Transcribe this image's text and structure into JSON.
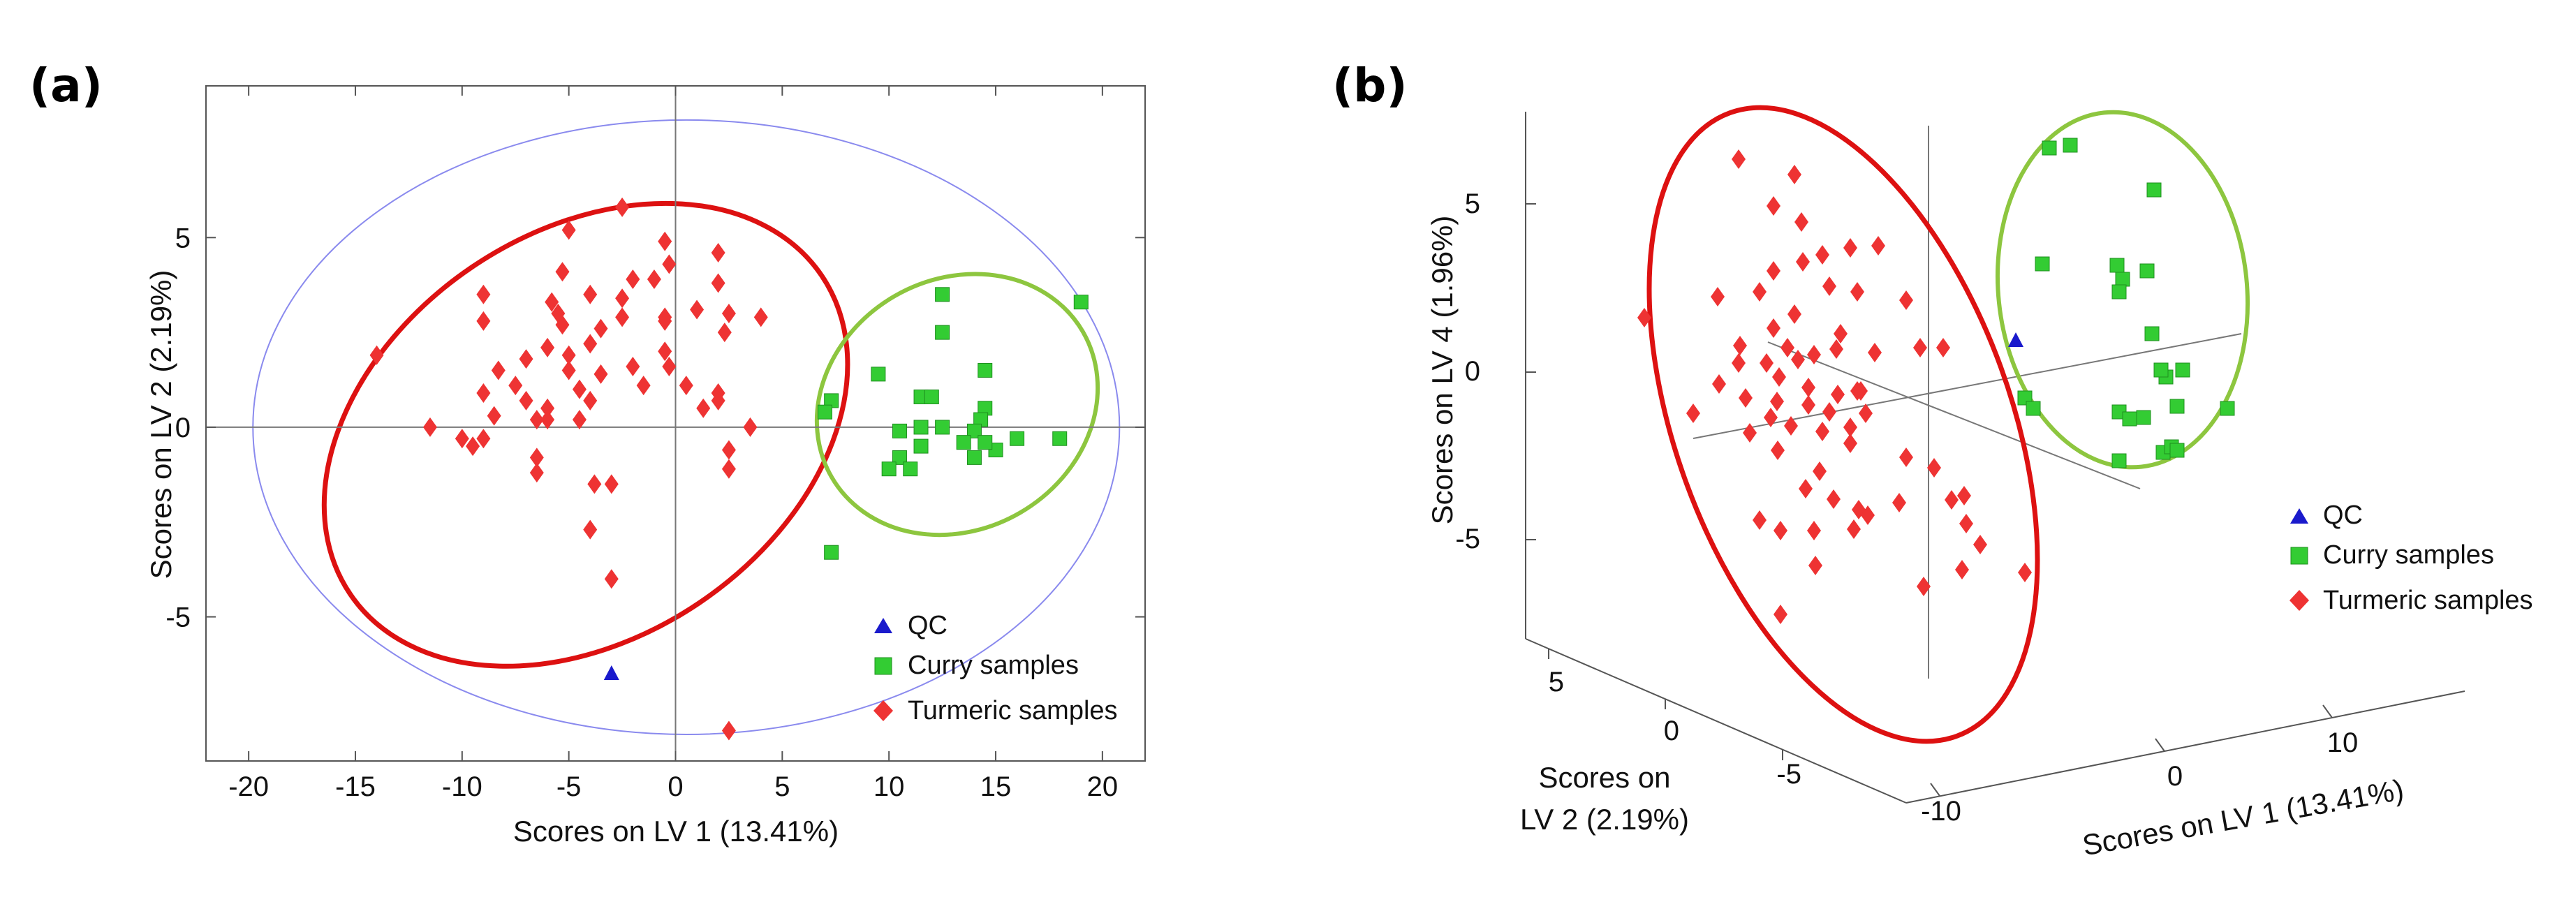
{
  "chart_data": [
    {
      "panel_label": "(a)",
      "type": "scatter",
      "xlabel": "Scores on LV 1 (13.41%)",
      "ylabel": "Scores on LV 2 (2.19%)",
      "xlim": [
        -22,
        22
      ],
      "ylim": [
        -8.8,
        9
      ],
      "xticks": [
        -20,
        -15,
        -10,
        -5,
        0,
        5,
        10,
        15,
        20
      ],
      "yticks": [
        -5,
        0,
        5
      ],
      "xtick_labels": [
        "-20",
        "-15",
        "-10",
        "-5",
        "0",
        "5",
        "10",
        "15",
        "20"
      ],
      "ytick_labels": [
        "-5",
        "0",
        "5"
      ],
      "legend": {
        "position": "bottom-right",
        "entries": [
          "QC",
          "Curry samples",
          "Turmeric samples"
        ]
      },
      "colors": {
        "QC": "#1a1acc",
        "Curry": "#33cc33",
        "Turmeric": "#ee3333",
        "curry_ellipse": "#8dc63f",
        "turmeric_ellipse": "#dd1111",
        "confidence": "#8a8aee"
      },
      "series": [
        {
          "name": "QC",
          "marker": "triangle",
          "points": [
            [
              -3,
              -6.5
            ]
          ]
        },
        {
          "name": "Curry samples",
          "marker": "square",
          "points": [
            [
              19,
              3.3
            ],
            [
              12.5,
              3.5
            ],
            [
              12.5,
              2.5
            ],
            [
              7.3,
              0.7
            ],
            [
              7,
              0.4
            ],
            [
              9.5,
              1.4
            ],
            [
              11.5,
              0.8
            ],
            [
              12,
              0.8
            ],
            [
              14.5,
              1.5
            ],
            [
              14.5,
              0.5
            ],
            [
              14.3,
              0.2
            ],
            [
              14,
              -0.1
            ],
            [
              12.5,
              0
            ],
            [
              11.5,
              0
            ],
            [
              10.5,
              -0.1
            ],
            [
              11.5,
              -0.5
            ],
            [
              10.5,
              -0.8
            ],
            [
              10,
              -1.1
            ],
            [
              11,
              -1.1
            ],
            [
              14,
              -0.8
            ],
            [
              15,
              -0.6
            ],
            [
              13.5,
              -0.4
            ],
            [
              16,
              -0.3
            ],
            [
              18,
              -0.3
            ],
            [
              14.5,
              -0.4
            ],
            [
              7.3,
              -3.3
            ]
          ]
        },
        {
          "name": "Turmeric samples",
          "marker": "diamond",
          "points": [
            [
              -14,
              1.9
            ],
            [
              -11.5,
              0
            ],
            [
              -10,
              -0.3
            ],
            [
              -9.5,
              -0.5
            ],
            [
              -9,
              -0.3
            ],
            [
              -9,
              3.5
            ],
            [
              -9,
              2.8
            ],
            [
              -9,
              0.9
            ],
            [
              -8.5,
              0.3
            ],
            [
              -8.3,
              1.5
            ],
            [
              -7.5,
              1.1
            ],
            [
              -7,
              1.8
            ],
            [
              -7,
              0.7
            ],
            [
              -6.5,
              0.2
            ],
            [
              -6,
              0.5
            ],
            [
              -6,
              0.2
            ],
            [
              -6.5,
              -0.8
            ],
            [
              -6.5,
              -1.2
            ],
            [
              -6,
              2.1
            ],
            [
              -5.8,
              3.3
            ],
            [
              -5.5,
              3
            ],
            [
              -5.3,
              2.7
            ],
            [
              -5.3,
              4.1
            ],
            [
              -5,
              5.2
            ],
            [
              -5,
              1.9
            ],
            [
              -5,
              1.5
            ],
            [
              -4.5,
              1
            ],
            [
              -4.5,
              0.2
            ],
            [
              -4,
              3.5
            ],
            [
              -4,
              2.2
            ],
            [
              -4,
              0.7
            ],
            [
              -3.8,
              -1.5
            ],
            [
              -4,
              -2.7
            ],
            [
              -3.5,
              1.4
            ],
            [
              -3.5,
              2.6
            ],
            [
              -3,
              -1.5
            ],
            [
              -3,
              -4
            ],
            [
              -2.5,
              5.8
            ],
            [
              -2.5,
              3.4
            ],
            [
              -2.5,
              2.9
            ],
            [
              -2,
              1.6
            ],
            [
              -2,
              3.9
            ],
            [
              -1.5,
              1.1
            ],
            [
              -1,
              3.9
            ],
            [
              -0.5,
              2.8
            ],
            [
              -0.5,
              2
            ],
            [
              -0.5,
              4.9
            ],
            [
              -0.3,
              1.6
            ],
            [
              -0.3,
              4.3
            ],
            [
              -0.5,
              2.9
            ],
            [
              0.5,
              1.1
            ],
            [
              1,
              3.1
            ],
            [
              1.3,
              0.5
            ],
            [
              2,
              4.6
            ],
            [
              2,
              0.9
            ],
            [
              2,
              3.8
            ],
            [
              2.3,
              2.5
            ],
            [
              2.5,
              -0.6
            ],
            [
              2.5,
              -1.1
            ],
            [
              3.5,
              0
            ],
            [
              2.5,
              3
            ],
            [
              4,
              2.9
            ],
            [
              2,
              0.7
            ],
            [
              2.5,
              -8
            ]
          ]
        }
      ],
      "ellipses": [
        {
          "name": "confidence",
          "center": [
            0.5,
            0
          ],
          "radii": [
            20.3,
            8.1
          ],
          "angle_deg": 0
        },
        {
          "name": "turmeric",
          "center": [
            -4.2,
            -0.2
          ],
          "radii": [
            9.5,
            7.5
          ],
          "angle_deg": -56
        },
        {
          "name": "curry",
          "center": [
            13.2,
            0.6
          ],
          "radii": [
            6.8,
            3.3
          ],
          "angle_deg": 30
        }
      ]
    },
    {
      "panel_label": "(b)",
      "type": "scatter",
      "projection": "3d",
      "xlabel": "Scores on LV 1 (13.41%)",
      "ylabel_line1": "Scores on",
      "ylabel_line2": "LV 2 (2.19%)",
      "zlabel": "Scores on LV 4 (1.96%)",
      "x_ticks": [
        "-10",
        "0",
        "10"
      ],
      "y_ticks": [
        "-5",
        "0",
        "5"
      ],
      "z_ticks": [
        "-5",
        "0",
        "5"
      ],
      "legend": {
        "position": "right",
        "entries": [
          "QC",
          "Curry samples",
          "Turmeric samples"
        ]
      },
      "colors": {
        "QC": "#1a1acc",
        "Curry": "#33cc33",
        "Turmeric": "#ee3333",
        "curry_ellipse": "#8dc63f",
        "turmeric_ellipse": "#dd1111"
      }
    }
  ],
  "panel_b_markers": {
    "qc": [
      [
        2887,
        488
      ]
    ],
    "curry": [
      [
        2935,
        212
      ],
      [
        2965,
        208
      ],
      [
        3085,
        272
      ],
      [
        2925,
        378
      ],
      [
        3032,
        380
      ],
      [
        3040,
        400
      ],
      [
        3075,
        388
      ],
      [
        3035,
        418
      ],
      [
        3082,
        478
      ],
      [
        3102,
        540
      ],
      [
        3095,
        530
      ],
      [
        3126,
        530
      ],
      [
        3118,
        582
      ],
      [
        2900,
        570
      ],
      [
        2912,
        585
      ],
      [
        3035,
        590
      ],
      [
        3050,
        600
      ],
      [
        3070,
        598
      ],
      [
        3035,
        660
      ],
      [
        3098,
        648
      ],
      [
        3110,
        640
      ],
      [
        3118,
        645
      ],
      [
        3190,
        585
      ]
    ],
    "turmeric": [
      [
        2355,
        455
      ],
      [
        2460,
        425
      ],
      [
        2490,
        228
      ],
      [
        2570,
        250
      ],
      [
        2540,
        295
      ],
      [
        2580,
        318
      ],
      [
        2650,
        355
      ],
      [
        2582,
        375
      ],
      [
        2610,
        365
      ],
      [
        2690,
        352
      ],
      [
        2540,
        388
      ],
      [
        2520,
        418
      ],
      [
        2620,
        410
      ],
      [
        2660,
        418
      ],
      [
        2730,
        430
      ],
      [
        2570,
        450
      ],
      [
        2540,
        470
      ],
      [
        2492,
        495
      ],
      [
        2560,
        498
      ],
      [
        2598,
        508
      ],
      [
        2636,
        478
      ],
      [
        2685,
        505
      ],
      [
        2750,
        498
      ],
      [
        2783,
        498
      ],
      [
        2490,
        520
      ],
      [
        2530,
        520
      ],
      [
        2575,
        515
      ],
      [
        2630,
        500
      ],
      [
        2548,
        540
      ],
      [
        2590,
        555
      ],
      [
        2632,
        565
      ],
      [
        2660,
        560
      ],
      [
        2462,
        550
      ],
      [
        2425,
        592
      ],
      [
        2500,
        570
      ],
      [
        2545,
        575
      ],
      [
        2590,
        580
      ],
      [
        2620,
        590
      ],
      [
        2665,
        560
      ],
      [
        2672,
        592
      ],
      [
        2650,
        612
      ],
      [
        2506,
        620
      ],
      [
        2536,
        598
      ],
      [
        2565,
        610
      ],
      [
        2610,
        618
      ],
      [
        2650,
        635
      ],
      [
        2730,
        655
      ],
      [
        2770,
        670
      ],
      [
        2813,
        710
      ],
      [
        2546,
        645
      ],
      [
        2606,
        675
      ],
      [
        2586,
        700
      ],
      [
        2626,
        715
      ],
      [
        2662,
        730
      ],
      [
        2598,
        760
      ],
      [
        2655,
        758
      ],
      [
        2520,
        745
      ],
      [
        2550,
        760
      ],
      [
        2600,
        810
      ],
      [
        2720,
        720
      ],
      [
        2816,
        750
      ],
      [
        2836,
        780
      ],
      [
        2900,
        820
      ],
      [
        2810,
        816
      ],
      [
        2755,
        840
      ],
      [
        2550,
        880
      ],
      [
        2675,
        738
      ],
      [
        2795,
        716
      ]
    ]
  }
}
